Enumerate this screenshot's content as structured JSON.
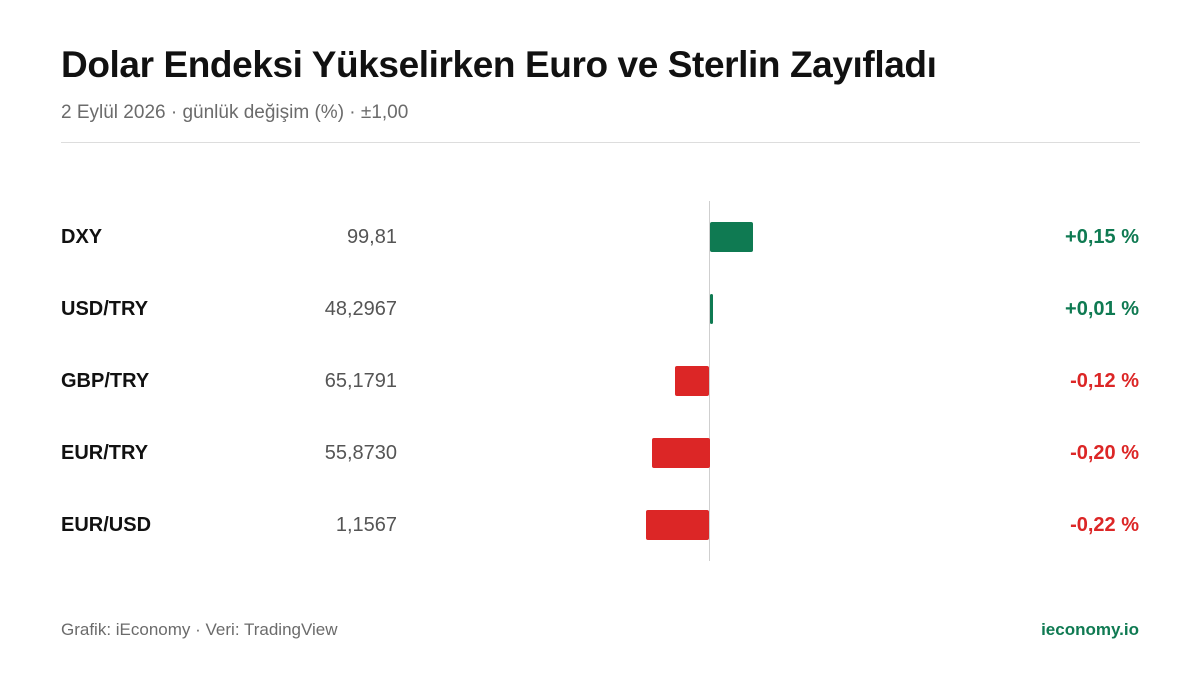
{
  "header": {
    "title": "Dolar Endeksi Yükselirken Euro ve Sterlin Zayıfladı",
    "subtitle": "2 Eylül 2026 · günlük değişim (%) · ±1,00"
  },
  "footer": {
    "source": "Grafik: iEconomy · Veri: TradingView",
    "brand": "ieconomy.io"
  },
  "colors": {
    "positive": "#0f7a52",
    "negative": "#dc2626"
  },
  "chart_data": {
    "type": "bar",
    "orientation": "horizontal",
    "xlim": [
      -1.0,
      1.0
    ],
    "categories": [
      "DXY",
      "USD/TRY",
      "GBP/TRY",
      "EUR/TRY",
      "EUR/USD"
    ],
    "prices": [
      "99,81",
      "48,2967",
      "65,1791",
      "55,8730",
      "1,1567"
    ],
    "values": [
      0.15,
      0.01,
      -0.12,
      -0.2,
      -0.22
    ],
    "value_labels": [
      "+0,15 %",
      "+0,01 %",
      "-0,12 %",
      "-0,20 %",
      "-0,22 %"
    ]
  }
}
